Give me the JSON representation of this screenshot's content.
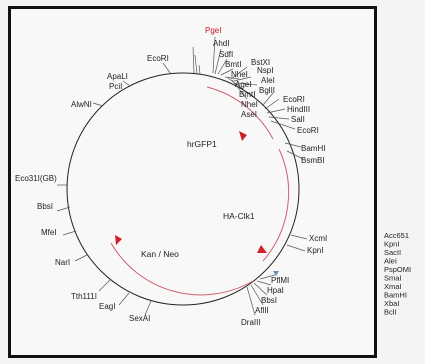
{
  "plasmid_map": {
    "features": [
      {
        "label": "hrGFP1"
      },
      {
        "label": "HA-Clk1"
      },
      {
        "label": "Kan / Neo"
      }
    ],
    "sites": [
      {
        "label": "PgeI",
        "highlight": true
      },
      {
        "label": "AhdI"
      },
      {
        "label": "SdfI"
      },
      {
        "label": "BmtI"
      },
      {
        "label": "NheI"
      },
      {
        "label": "AgeI"
      },
      {
        "label": "BmtI"
      },
      {
        "label": "NheI"
      },
      {
        "label": "AseI"
      },
      {
        "label": "EcoRI"
      },
      {
        "label": "ApaLI"
      },
      {
        "label": "PciI"
      },
      {
        "label": "AlwNI"
      },
      {
        "label": "Eco31I(GB)"
      },
      {
        "label": "BbsI"
      },
      {
        "label": "MfeI"
      },
      {
        "label": "NarI"
      },
      {
        "label": "Tth111I"
      },
      {
        "label": "EagI"
      },
      {
        "label": "SexAI"
      },
      {
        "label": "DraIII"
      },
      {
        "label": "AflII"
      },
      {
        "label": "BbsI"
      },
      {
        "label": "HpaI"
      },
      {
        "label": "PflMI"
      },
      {
        "label": "KpnI"
      },
      {
        "label": "XcmI"
      },
      {
        "label": "BsmBI"
      },
      {
        "label": "BamHI"
      },
      {
        "label": "EcoRI"
      },
      {
        "label": "SalI"
      },
      {
        "label": "HindIII"
      },
      {
        "label": "EcoRI"
      },
      {
        "label": "BglII"
      },
      {
        "label": "AleI"
      },
      {
        "label": "NspI"
      },
      {
        "label": "BstXI"
      }
    ],
    "mcs_list": [
      "Acc651",
      "KpnI",
      "SacII",
      "AleI",
      "PspOMI",
      "SmaI",
      "XmaI",
      "BamHI",
      "XbaI",
      "BclI"
    ]
  }
}
